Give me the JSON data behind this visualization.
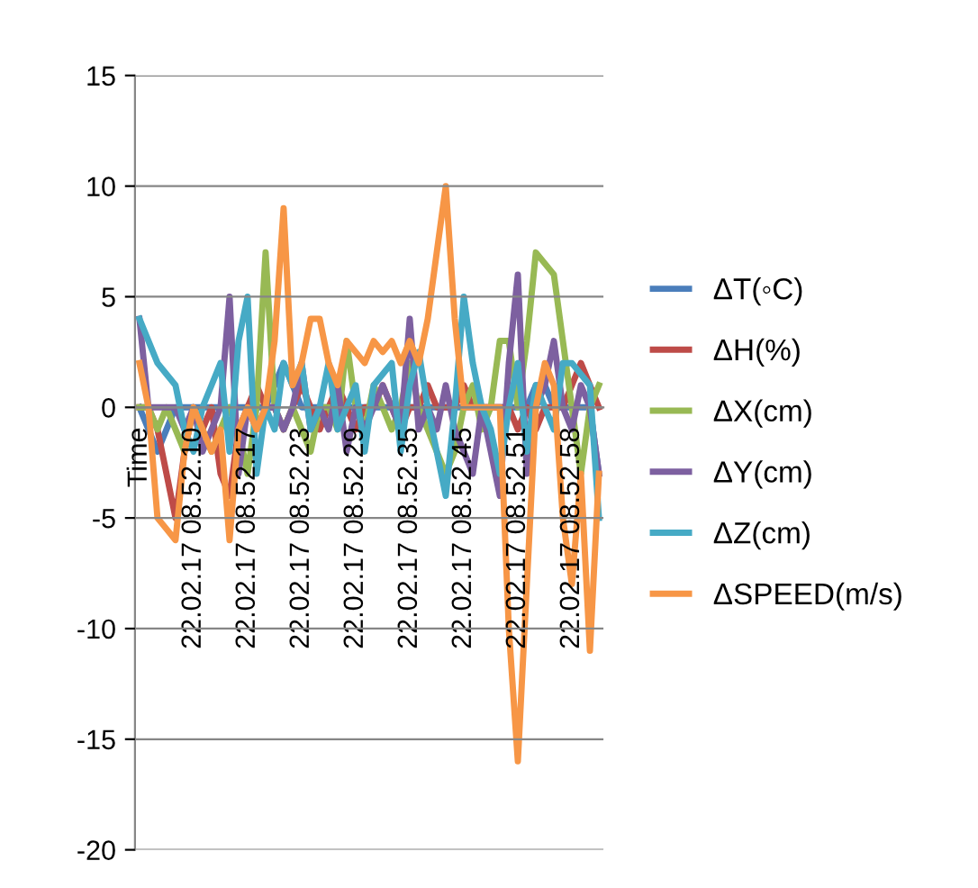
{
  "chart_data": {
    "type": "line",
    "categories": [
      "Time",
      null,
      null,
      null,
      null,
      null,
      "22.02.17 08.52.10",
      null,
      null,
      null,
      null,
      null,
      "22.02.17 08.52.17",
      null,
      null,
      null,
      null,
      null,
      "22.02.17 08.52.23",
      null,
      null,
      null,
      null,
      null,
      "22.02.17 08.52.29",
      null,
      null,
      null,
      null,
      null,
      "22.02.17 08.52.35",
      null,
      null,
      null,
      null,
      null,
      "22.02.17 08.52.45",
      null,
      null,
      null,
      null,
      null,
      "22.02.17 08.52.51",
      null,
      null,
      null,
      null,
      null,
      "22.02.17 08.52.58",
      null,
      null,
      null
    ],
    "series": [
      {
        "name": "ΔT(◦C)",
        "color": "#4a7ebb",
        "values": [
          0,
          -1,
          -2,
          -1,
          0,
          0,
          0,
          0,
          0,
          0,
          0,
          0,
          0,
          0,
          0,
          1,
          2,
          1,
          0,
          0,
          0,
          0,
          0,
          0,
          0,
          0,
          0,
          0,
          0,
          0,
          0,
          0,
          0,
          0,
          0,
          0,
          0,
          0,
          0,
          0,
          0,
          0,
          0,
          0,
          1,
          1,
          0,
          0,
          0,
          0,
          0,
          -3
        ]
      },
      {
        "name": "ΔH(%)",
        "color": "#be4b48",
        "values": [
          0,
          0,
          -1,
          -3,
          -5,
          -2,
          0,
          -1,
          0,
          -3,
          -4,
          -1,
          0,
          1,
          0,
          0,
          -1,
          0,
          1,
          0,
          -1,
          0,
          1,
          0,
          -1,
          0,
          0,
          1,
          0,
          -1,
          0,
          0,
          1,
          0,
          0,
          0,
          1,
          0,
          0,
          0,
          0,
          0,
          -1,
          0,
          -1,
          0,
          0,
          0,
          1,
          2,
          1,
          0
        ]
      },
      {
        "name": "ΔX(cm)",
        "color": "#98b954",
        "values": [
          0,
          0,
          -1,
          0,
          -1,
          -2,
          0,
          -1,
          -2,
          -1,
          0,
          -1,
          -3,
          0,
          7,
          0,
          -1,
          0,
          -1,
          -2,
          0,
          0,
          -1,
          3,
          0,
          -1,
          1,
          0,
          -1,
          0,
          2,
          0,
          -1,
          -2,
          -3,
          -2,
          0,
          1,
          -1,
          0,
          3,
          3,
          0,
          3,
          7,
          6.5,
          6,
          3,
          0,
          -3,
          0,
          1
        ]
      },
      {
        "name": "ΔY(cm)",
        "color": "#7d60a0",
        "values": [
          4,
          0,
          0,
          0,
          0,
          -1,
          0,
          -2,
          -1,
          0,
          5,
          -3,
          0,
          -1,
          0,
          0,
          -1,
          0,
          2,
          -1,
          0,
          -1,
          1,
          -2,
          0,
          -1,
          0,
          1,
          0,
          -1,
          4,
          -1,
          0,
          -1,
          1,
          -1,
          -2,
          -3,
          0,
          -2,
          -4,
          2,
          6,
          -3,
          0,
          1,
          3,
          0,
          -1,
          1,
          0,
          -3
        ]
      },
      {
        "name": "ΔZ(cm)",
        "color": "#46aac5",
        "values": [
          4,
          3,
          2,
          1.5,
          1,
          -1,
          -2,
          0,
          1,
          2,
          -2,
          3,
          5,
          -3,
          0,
          -1,
          2,
          1,
          2,
          -1,
          0,
          2,
          -1,
          0,
          1,
          -2,
          1,
          1.5,
          2,
          -2,
          1,
          2.5,
          0,
          -2,
          -4,
          0,
          5,
          2,
          0,
          -1,
          -3,
          0,
          2,
          -2,
          1,
          0,
          -1,
          2,
          2,
          1.5,
          1,
          -5
        ]
      },
      {
        "name": "ΔSPEED(m/s)",
        "color": "#f79646",
        "values": [
          2,
          0,
          -5,
          -5.5,
          -6,
          -2,
          0,
          -1,
          -2,
          -1,
          -6,
          -1,
          0,
          -1,
          0,
          3,
          9,
          1,
          2,
          4,
          4,
          2,
          1,
          3,
          2.5,
          2,
          3,
          2.5,
          3,
          2,
          3,
          2,
          4,
          7,
          10,
          4,
          0,
          0,
          0,
          0,
          0,
          -10,
          -16,
          -8,
          0,
          2,
          1,
          -5,
          -8,
          -3,
          -11,
          -3
        ]
      }
    ],
    "ylim": [
      -20,
      15
    ],
    "yticks": [
      -20,
      -15,
      -10,
      -5,
      0,
      5,
      10,
      15
    ],
    "grid": "y",
    "legend": "right",
    "marker": "none",
    "line_style": "solid"
  }
}
